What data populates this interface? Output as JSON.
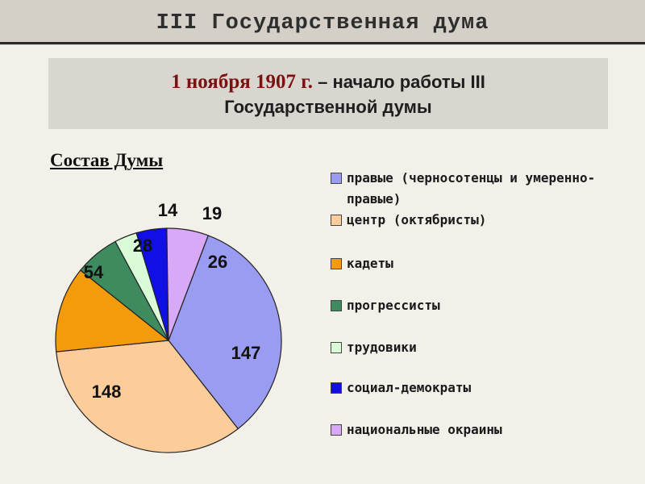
{
  "header": {
    "title": "III Государственная дума"
  },
  "banner": {
    "date": "1 ноября 1907 г.",
    "line1_rest": " – начало работы III",
    "line2": "Государственной думы"
  },
  "section_label": "Состав Думы",
  "chart_data": {
    "type": "pie",
    "title": "Состав Думы",
    "slices": [
      {
        "label": "правые (черносотенцы и умеренно-правые)",
        "value": 147,
        "color": "#9a9cf2"
      },
      {
        "label": "центр (октябристы)",
        "value": 148,
        "color": "#fccd9b"
      },
      {
        "label": "кадеты",
        "value": 54,
        "color": "#f49b0b"
      },
      {
        "label": "прогрессисты",
        "value": 28,
        "color": "#3d8b5f"
      },
      {
        "label": "трудовики",
        "value": 14,
        "color": "#d9fbd7"
      },
      {
        "label": "социал-демократы",
        "value": 19,
        "color": "#1010e6"
      },
      {
        "label": "национальные окраины",
        "value": 26,
        "color": "#d7a9f7"
      }
    ],
    "legend_position": "right"
  }
}
